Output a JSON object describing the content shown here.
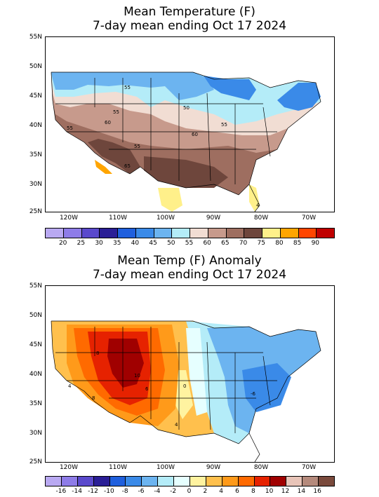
{
  "top": {
    "title_line1": "Mean Temperature (F)",
    "title_line2": "7-day mean ending Oct 17 2024",
    "lat_labels": [
      "55N",
      "50N",
      "45N",
      "40N",
      "35N",
      "30N",
      "25N"
    ],
    "lon_labels": [
      "120W",
      "110W",
      "100W",
      "90W",
      "80W",
      "70W"
    ],
    "contour_labels": [
      "55",
      "50",
      "55",
      "60",
      "55",
      "65",
      "55",
      "60",
      "55",
      "4"
    ],
    "colorbar_colors": [
      "#b9a9f2",
      "#8e7ce8",
      "#5a49cc",
      "#2a1e96",
      "#1f5fdd",
      "#3a8ae8",
      "#6cb4f0",
      "#b4ecf8",
      "#f1ddd3",
      "#c79a8c",
      "#9e6e60",
      "#6e463c",
      "#fff08a",
      "#ffa500",
      "#ff4500",
      "#c00000"
    ],
    "colorbar_labels": [
      "20",
      "25",
      "30",
      "35",
      "40",
      "45",
      "50",
      "55",
      "60",
      "65",
      "70",
      "75",
      "80",
      "85",
      "90"
    ]
  },
  "bottom": {
    "title_line1": "Mean Temp (F) Anomaly",
    "title_line2": "7-day mean ending Oct 17 2024",
    "lat_labels": [
      "55N",
      "50N",
      "45N",
      "40N",
      "35N",
      "30N",
      "25N"
    ],
    "lon_labels": [
      "120W",
      "110W",
      "100W",
      "90W",
      "80W",
      "70W"
    ],
    "contour_labels": [
      "8",
      "10",
      "8",
      "6",
      "4",
      "0",
      "-6",
      "4"
    ],
    "colorbar_colors": [
      "#b9a9f2",
      "#8e7ce8",
      "#5a49cc",
      "#2a1e96",
      "#1f5fdd",
      "#3a8ae8",
      "#6cb4f0",
      "#b4ecf8",
      "#e6ffff",
      "#fff3a0",
      "#ffc04d",
      "#ff9a1a",
      "#ff6a00",
      "#e62200",
      "#a00000",
      "#e8c4b8",
      "#b58a7c",
      "#7a4a3c"
    ],
    "colorbar_labels": [
      "-16",
      "-14",
      "-12",
      "-10",
      "-8",
      "-6",
      "-4",
      "-2",
      "0",
      "2",
      "4",
      "6",
      "8",
      "10",
      "12",
      "14",
      "16"
    ]
  }
}
